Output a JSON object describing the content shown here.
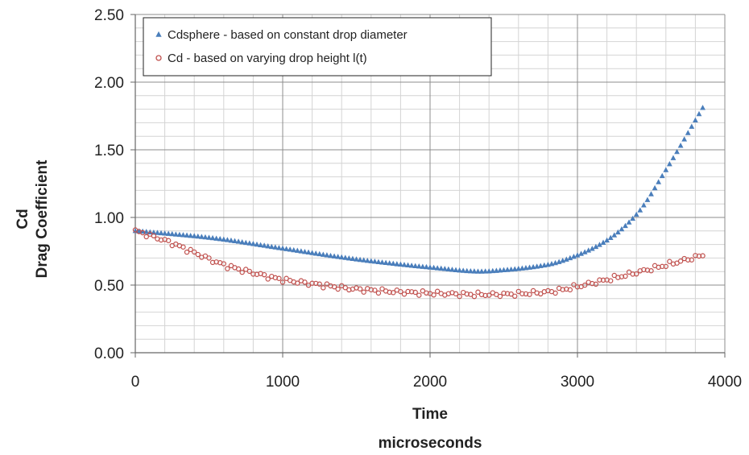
{
  "chart_data": {
    "type": "scatter",
    "xlabel_lines": [
      "Time",
      "microseconds"
    ],
    "ylabel_lines": [
      "Cd",
      "Drag Coefficient"
    ],
    "xlim": [
      0,
      4000
    ],
    "ylim": [
      0,
      2.5
    ],
    "x_major_ticks": [
      0,
      1000,
      2000,
      3000,
      4000
    ],
    "x_tick_labels": [
      "0",
      "1000",
      "2000",
      "3000",
      "4000"
    ],
    "x_minor_step": 200,
    "y_major_ticks": [
      0,
      0.5,
      1.0,
      1.5,
      2.0,
      2.5
    ],
    "y_tick_labels": [
      "0.00",
      "0.50",
      "1.00",
      "1.50",
      "2.00",
      "2.50"
    ],
    "y_minor_step": 0.1,
    "grid": true,
    "legend_position": "top-left",
    "series": [
      {
        "name": "Cdsphere - based on constant drop diameter",
        "marker": "triangle",
        "color": "#4a7ebb",
        "x_start": 0,
        "x_end": 3850,
        "x_step": 25,
        "anchor_x": [
          0,
          500,
          1000,
          1500,
          2000,
          2350,
          2500,
          2800,
          3000,
          3200,
          3400,
          3600,
          3850
        ],
        "anchor_y": [
          0.9,
          0.85,
          0.77,
          0.69,
          0.63,
          0.6,
          0.61,
          0.65,
          0.72,
          0.83,
          1.02,
          1.35,
          1.81
        ]
      },
      {
        "name": "Cd - based on varying drop height l(t)",
        "marker": "circle",
        "color": "#c0504d",
        "x_start": 0,
        "x_end": 3850,
        "x_step": 25,
        "anchor_x": [
          0,
          200,
          400,
          600,
          800,
          1000,
          1200,
          1500,
          2000,
          2400,
          2800,
          3000,
          3200,
          3500,
          3850
        ],
        "anchor_y": [
          0.9,
          0.83,
          0.74,
          0.65,
          0.59,
          0.54,
          0.51,
          0.47,
          0.44,
          0.43,
          0.45,
          0.49,
          0.54,
          0.62,
          0.72
        ]
      }
    ]
  }
}
